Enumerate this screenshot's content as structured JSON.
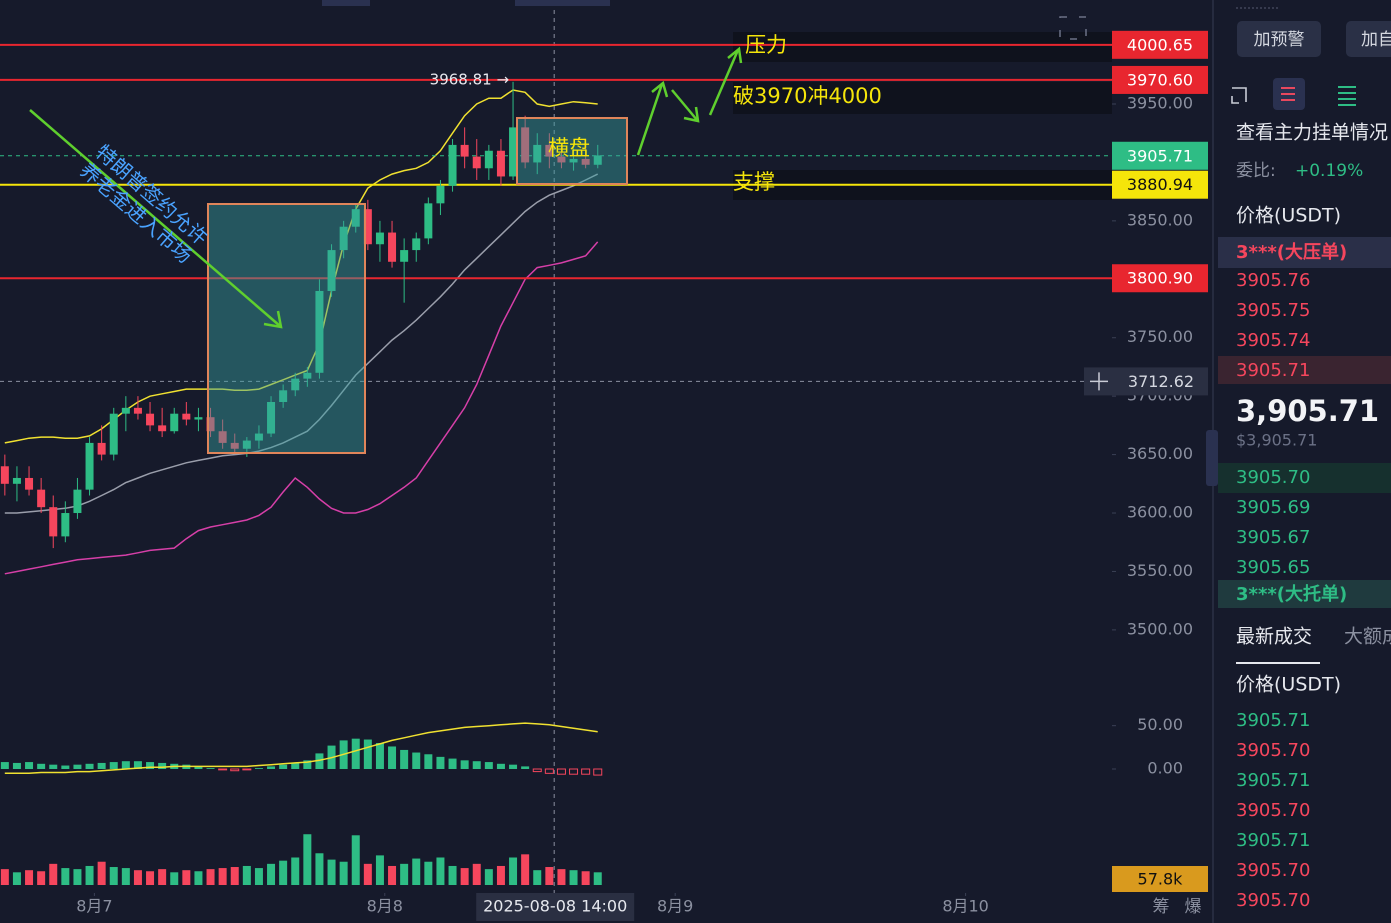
{
  "chart_data": {
    "type": "candlestick",
    "xlim": [
      -0.4,
      91.5
    ],
    "ylim": [
      3440,
      4039
    ],
    "xticks": [
      {
        "value": 7.4,
        "label": "8月7"
      },
      {
        "value": 31.4,
        "label": "8月8"
      },
      {
        "value": 55.4,
        "label": "8月9"
      },
      {
        "value": 79.4,
        "label": "8月10"
      }
    ],
    "yticks": [
      {
        "value": 3950,
        "label": "3950.00"
      },
      {
        "value": 3850,
        "label": "3850.00"
      },
      {
        "value": 3750,
        "label": "3750.00"
      },
      {
        "value": 3700,
        "label": "3700.00"
      },
      {
        "value": 3650,
        "label": "3650.00"
      },
      {
        "value": 3600,
        "label": "3600.00"
      },
      {
        "value": 3550,
        "label": "3550.00"
      },
      {
        "value": 3500,
        "label": "3500.00"
      }
    ],
    "open": [
      3640,
      3625,
      3630,
      3620,
      3605,
      3580,
      3600,
      3620,
      3660,
      3650,
      3685,
      3690,
      3685,
      3675,
      3670,
      3685,
      3680,
      3682,
      3670,
      3660,
      3655,
      3662,
      3668,
      3695,
      3705,
      3715,
      3720,
      3790,
      3825,
      3845,
      3860,
      3830,
      3840,
      3815,
      3825,
      3835,
      3865,
      3880,
      3915,
      3905,
      3895,
      3910,
      3888,
      3930,
      3900,
      3915,
      3905,
      3900,
      3903,
      3898
    ],
    "high": [
      3650,
      3640,
      3640,
      3630,
      3615,
      3610,
      3630,
      3665,
      3675,
      3690,
      3700,
      3700,
      3695,
      3690,
      3690,
      3695,
      3690,
      3690,
      3680,
      3668,
      3665,
      3675,
      3700,
      3710,
      3720,
      3725,
      3800,
      3830,
      3850,
      3865,
      3868,
      3850,
      3850,
      3835,
      3840,
      3870,
      3885,
      3920,
      3930,
      3920,
      3915,
      3920,
      3969,
      3940,
      3925,
      3925,
      3915,
      3912,
      3915,
      3915
    ],
    "low": [
      3615,
      3610,
      3615,
      3600,
      3570,
      3575,
      3595,
      3615,
      3645,
      3645,
      3670,
      3680,
      3670,
      3665,
      3668,
      3675,
      3670,
      3665,
      3655,
      3652,
      3648,
      3655,
      3665,
      3690,
      3700,
      3708,
      3715,
      3785,
      3818,
      3840,
      3825,
      3815,
      3810,
      3780,
      3815,
      3830,
      3855,
      3875,
      3895,
      3885,
      3885,
      3880,
      3885,
      3895,
      3890,
      3895,
      3895,
      3893,
      3895,
      3895
    ],
    "close": [
      3625,
      3630,
      3620,
      3605,
      3580,
      3600,
      3620,
      3660,
      3650,
      3685,
      3690,
      3685,
      3675,
      3670,
      3685,
      3680,
      3682,
      3670,
      3660,
      3655,
      3662,
      3668,
      3695,
      3705,
      3715,
      3720,
      3790,
      3825,
      3845,
      3860,
      3830,
      3840,
      3815,
      3825,
      3835,
      3865,
      3880,
      3915,
      3905,
      3895,
      3910,
      3888,
      3930,
      3900,
      3915,
      3905,
      3900,
      3903,
      3898,
      3906
    ],
    "up_color": "#2ebd85",
    "down_color": "#f6465d",
    "bands": [
      {
        "color": "#f0e130",
        "values": [
          3660,
          3662,
          3664,
          3665,
          3665,
          3664,
          3664,
          3666,
          3672,
          3680,
          3688,
          3695,
          3700,
          3702,
          3704,
          3706,
          3706,
          3706,
          3706,
          3705,
          3705,
          3706,
          3710,
          3714,
          3718,
          3722,
          3745,
          3790,
          3830,
          3860,
          3878,
          3885,
          3890,
          3893,
          3895,
          3900,
          3910,
          3925,
          3940,
          3950,
          3955,
          3955,
          3962,
          3960,
          3950,
          3948,
          3950,
          3952,
          3951,
          3950
        ]
      },
      {
        "color": "#9a9eab",
        "values": [
          3600,
          3600,
          3601,
          3602,
          3603,
          3604,
          3606,
          3610,
          3615,
          3620,
          3626,
          3630,
          3634,
          3637,
          3640,
          3643,
          3645,
          3647,
          3649,
          3650,
          3651,
          3653,
          3656,
          3660,
          3665,
          3670,
          3680,
          3692,
          3705,
          3718,
          3728,
          3738,
          3748,
          3756,
          3765,
          3775,
          3785,
          3796,
          3808,
          3818,
          3828,
          3838,
          3848,
          3858,
          3866,
          3872,
          3876,
          3880,
          3885,
          3890
        ]
      },
      {
        "color": "#d63fa8",
        "values": [
          3548,
          3550,
          3552,
          3554,
          3556,
          3558,
          3560,
          3561,
          3562,
          3563,
          3564,
          3566,
          3568,
          3569,
          3570,
          3578,
          3585,
          3588,
          3590,
          3592,
          3594,
          3598,
          3605,
          3618,
          3630,
          3622,
          3612,
          3604,
          3600,
          3600,
          3603,
          3608,
          3615,
          3622,
          3630,
          3645,
          3660,
          3675,
          3690,
          3710,
          3735,
          3760,
          3780,
          3800,
          3810,
          3812,
          3814,
          3817,
          3820,
          3832
        ]
      }
    ],
    "levels": [
      {
        "price": 4000.65,
        "color": "#e8262f"
      },
      {
        "price": {
          "value": 3970.6,
          "label": "3970.60"
        },
        "color": "#e8262f"
      },
      {
        "price": 3905.71,
        "color": "#2ebd85"
      },
      {
        "price": 3880.94,
        "color": "#f5e50a"
      },
      {
        "price": {
          "value": 3800.9,
          "label": "3800.90"
        },
        "color": "#e8262f"
      }
    ],
    "high_marker": "3968.81 →",
    "crosshair": {
      "price": 3712.62,
      "x": 45.4,
      "x_label": "2025-08-08 14:00"
    },
    "annotations": {
      "resistance": "压力",
      "breakout": "破3970冲4000",
      "range": "横盘",
      "support": "支撑",
      "news_line1": "特朗普签约允许",
      "news_line2": "养老金进入市场"
    },
    "macd": {
      "ylim": [
        -30,
        60
      ],
      "yticks": [
        {
          "value": 50,
          "label": "50.00"
        },
        {
          "value": 0,
          "label": "0.00"
        }
      ],
      "hist": [
        8,
        7,
        8,
        6,
        5,
        4,
        5,
        6,
        7,
        8,
        9,
        9,
        8,
        7,
        6,
        5,
        3,
        1,
        -1,
        -2,
        -1,
        1,
        3,
        5,
        7,
        10,
        18,
        27,
        33,
        35,
        34,
        30,
        26,
        22,
        19,
        17,
        14,
        12,
        10,
        9,
        8,
        6,
        5,
        3,
        -3,
        -5,
        -6,
        -6,
        -6,
        -7
      ],
      "line": [
        -5,
        -5,
        -5,
        -4,
        -4,
        -4,
        -3,
        -3,
        -2,
        -1,
        0,
        1,
        2,
        2,
        3,
        3,
        3,
        3,
        3,
        3,
        3,
        4,
        5,
        6,
        7,
        8,
        10,
        13,
        17,
        21,
        25,
        29,
        33,
        36,
        39,
        42,
        44,
        46,
        48,
        49,
        50,
        51,
        52,
        53,
        52,
        51,
        49,
        47,
        45,
        43
      ],
      "line_color": "#f0e130"
    },
    "volume": {
      "ylim": [
        0,
        520
      ],
      "values": [
        150,
        120,
        140,
        130,
        200,
        160,
        150,
        180,
        220,
        170,
        160,
        140,
        130,
        150,
        120,
        140,
        130,
        150,
        160,
        170,
        180,
        160,
        200,
        230,
        260,
        480,
        300,
        240,
        220,
        470,
        200,
        280,
        180,
        200,
        250,
        220,
        260,
        180,
        160,
        200,
        150,
        180,
        260,
        290,
        140,
        170,
        150,
        140,
        130,
        120
      ],
      "last_label": "57.8k"
    },
    "footer_tools": [
      "筹",
      "爆"
    ]
  },
  "panel": {
    "buttons": [
      "加预警",
      "加自选"
    ],
    "order_book_link": "查看主力挂单情况",
    "ratio_label": "委比:",
    "ratio": "+0.19%",
    "price_header": "价格(USDT)",
    "big_ask": "3***(大压单)",
    "asks": [
      "3905.76",
      "3905.75",
      "3905.74",
      "3905.71"
    ],
    "last_price": "3,905.71",
    "last_usd": "$3,905.71",
    "bids": [
      "3905.70",
      "3905.69",
      "3905.67",
      "3905.65"
    ],
    "big_bid": "3***(大托单)",
    "tabs": [
      "最新成交",
      "大额成交"
    ],
    "trades_header": "价格(USDT)",
    "trades": [
      {
        "price": "3905.71",
        "side": "buy"
      },
      {
        "price": "3905.70",
        "side": "sell"
      },
      {
        "price": "3905.71",
        "side": "buy"
      },
      {
        "price": "3905.70",
        "side": "sell"
      },
      {
        "price": "3905.71",
        "side": "buy"
      },
      {
        "price": "3905.70",
        "side": "sell"
      },
      {
        "price": "3905.70",
        "side": "sell"
      }
    ]
  }
}
